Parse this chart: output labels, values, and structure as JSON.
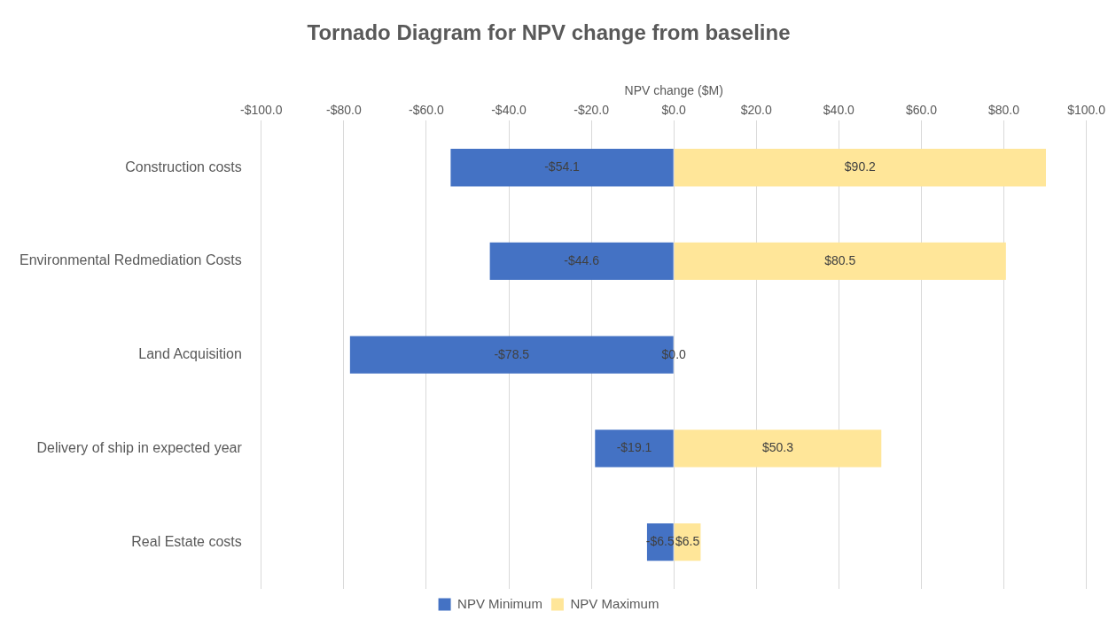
{
  "chart_data": {
    "type": "bar",
    "orientation": "horizontal",
    "stacked": true,
    "title": "Tornado Diagram for NPV change from baseline",
    "xlabel": "NPV change ($M)",
    "categories": [
      "Construction costs",
      "Environmental Redmediation Costs",
      "Land Acquisition",
      "Delivery of ship in expected year",
      "Real Estate costs"
    ],
    "series": [
      {
        "name": "NPV Minimum",
        "color": "#4472c4",
        "values": [
          -54.1,
          -44.6,
          -78.5,
          -19.1,
          -6.5
        ],
        "value_labels": [
          "-$54.1",
          "-$44.6",
          "-$78.5",
          "-$19.1",
          "-$6.5"
        ]
      },
      {
        "name": "NPV Maximum",
        "color": "#ffe699",
        "values": [
          90.2,
          80.5,
          0,
          50.3,
          6.5
        ],
        "value_labels": [
          "$90.2",
          "$80.5",
          "$0.0",
          "$50.3",
          "$6.5"
        ]
      }
    ],
    "xlim": [
      -100,
      100
    ],
    "xticks": [
      {
        "value": -100,
        "label": "-$100.0"
      },
      {
        "value": -80,
        "label": "-$80.0"
      },
      {
        "value": -60,
        "label": "-$60.0"
      },
      {
        "value": -40,
        "label": "-$40.0"
      },
      {
        "value": -20,
        "label": "-$20.0"
      },
      {
        "value": 0,
        "label": "$0.0"
      },
      {
        "value": 20,
        "label": "$20.0"
      },
      {
        "value": 40,
        "label": "$40.0"
      },
      {
        "value": 60,
        "label": "$60.0"
      },
      {
        "value": 80,
        "label": "$80.0"
      },
      {
        "value": 100,
        "label": "$100.0"
      }
    ],
    "grid": "x",
    "legend": "bottom"
  }
}
